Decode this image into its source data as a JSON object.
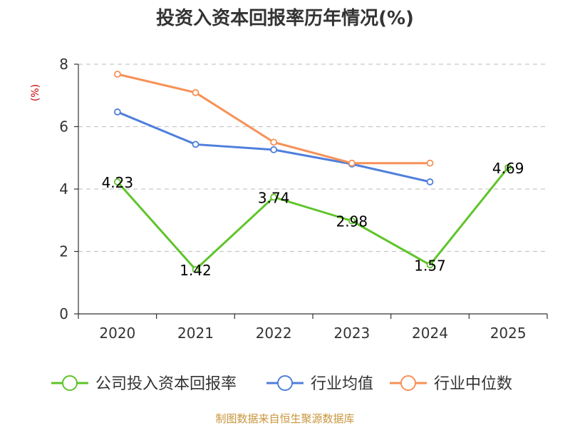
{
  "chart_data": {
    "type": "line",
    "title": "投资入资本回报率历年情况(%)",
    "ylabel": "(%)",
    "xlabel": "",
    "categories": [
      "2020",
      "2021",
      "2022",
      "2023",
      "2024",
      "2025"
    ],
    "ylim": [
      0,
      8
    ],
    "yticks": [
      "0",
      "2",
      "4",
      "6",
      "8"
    ],
    "grid": true,
    "legend_position": "bottom",
    "series": [
      {
        "name": "公司投入资本回报率",
        "color": "#5fc42a",
        "values": [
          4.23,
          1.42,
          3.74,
          2.98,
          1.57,
          4.69
        ],
        "labels": [
          "4.23",
          "1.42",
          "3.74",
          "2.98",
          "1.57",
          "4.69"
        ]
      },
      {
        "name": "行业均值",
        "color": "#4f7fdc",
        "values": [
          6.47,
          5.43,
          5.26,
          4.8,
          4.23,
          null
        ]
      },
      {
        "name": "行业中位数",
        "color": "#f79157",
        "values": [
          7.68,
          7.09,
          5.5,
          4.83,
          4.83,
          null
        ]
      }
    ],
    "source": "制图数据来自恒生聚源数据库"
  }
}
